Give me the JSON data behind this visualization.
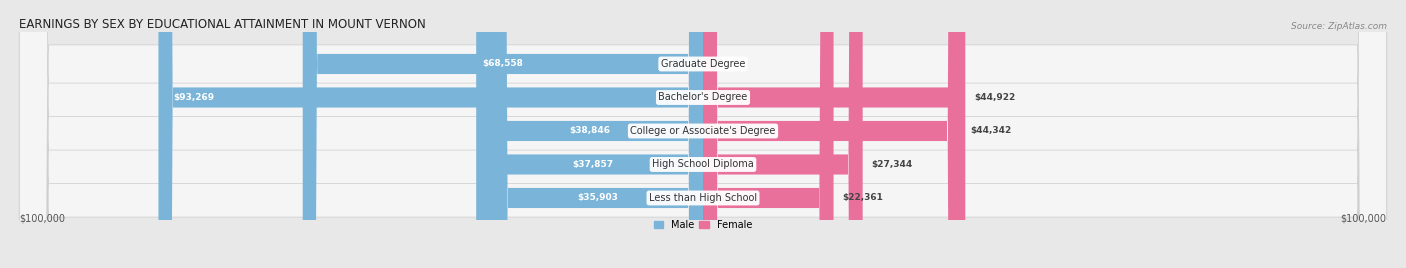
{
  "title": "EARNINGS BY SEX BY EDUCATIONAL ATTAINMENT IN MOUNT VERNON",
  "source": "Source: ZipAtlas.com",
  "categories": [
    "Less than High School",
    "High School Diploma",
    "College or Associate's Degree",
    "Bachelor's Degree",
    "Graduate Degree"
  ],
  "male_values": [
    35903,
    37857,
    38846,
    93269,
    68558
  ],
  "female_values": [
    22361,
    27344,
    44342,
    44922,
    0
  ],
  "max_value": 100000,
  "male_color": "#7ab4d8",
  "female_color": "#e8709a",
  "female_light_color": "#f0b0c8",
  "male_label": "Male",
  "female_label": "Female",
  "bg_color": "#e8e8e8",
  "row_bg_color": "#f5f5f5",
  "axis_label_left": "$100,000",
  "axis_label_right": "$100,000",
  "title_fontsize": 8.5,
  "source_fontsize": 6.5,
  "label_fontsize": 7,
  "value_fontsize": 6.5,
  "cat_fontsize": 7
}
